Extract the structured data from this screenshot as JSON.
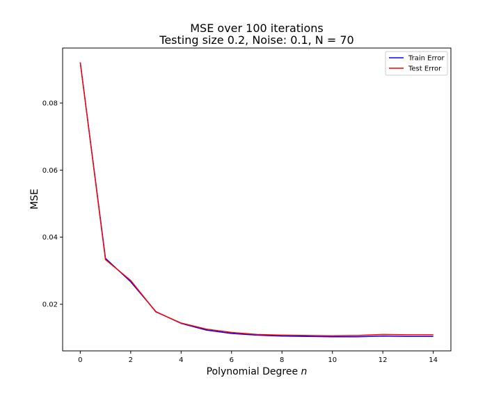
{
  "chart_data": {
    "type": "line",
    "title_line1": "MSE  over 100 iterations",
    "title_line2": "Testing size 0.2, Noise: 0.1, N = 70",
    "xlabel": "Polynomial Degree",
    "xlabel_var": "n",
    "ylabel": "MSE",
    "xlim": [
      -0.7,
      14.7
    ],
    "ylim": [
      0.0061,
      0.0964
    ],
    "xticks": [
      0,
      2,
      4,
      6,
      8,
      10,
      12,
      14
    ],
    "yticks": [
      0.02,
      0.04,
      0.06,
      0.08
    ],
    "ytick_labels": [
      "0.02",
      "0.04",
      "0.06",
      "0.08"
    ],
    "legend_position": "top-right",
    "x": [
      0,
      1,
      2,
      3,
      4,
      5,
      6,
      7,
      8,
      9,
      10,
      11,
      12,
      13,
      14
    ],
    "series": [
      {
        "name": "Train Error",
        "color": "#0000ff",
        "values": [
          0.0921,
          0.0337,
          0.0267,
          0.0178,
          0.0143,
          0.0123,
          0.0113,
          0.0108,
          0.0105,
          0.0104,
          0.0103,
          0.0103,
          0.0105,
          0.0104,
          0.0104
        ]
      },
      {
        "name": "Test Error",
        "color": "#ff0000",
        "values": [
          0.0921,
          0.0333,
          0.0271,
          0.0177,
          0.0144,
          0.0126,
          0.0116,
          0.011,
          0.0108,
          0.0107,
          0.0106,
          0.0107,
          0.011,
          0.0109,
          0.0109
        ]
      }
    ]
  }
}
